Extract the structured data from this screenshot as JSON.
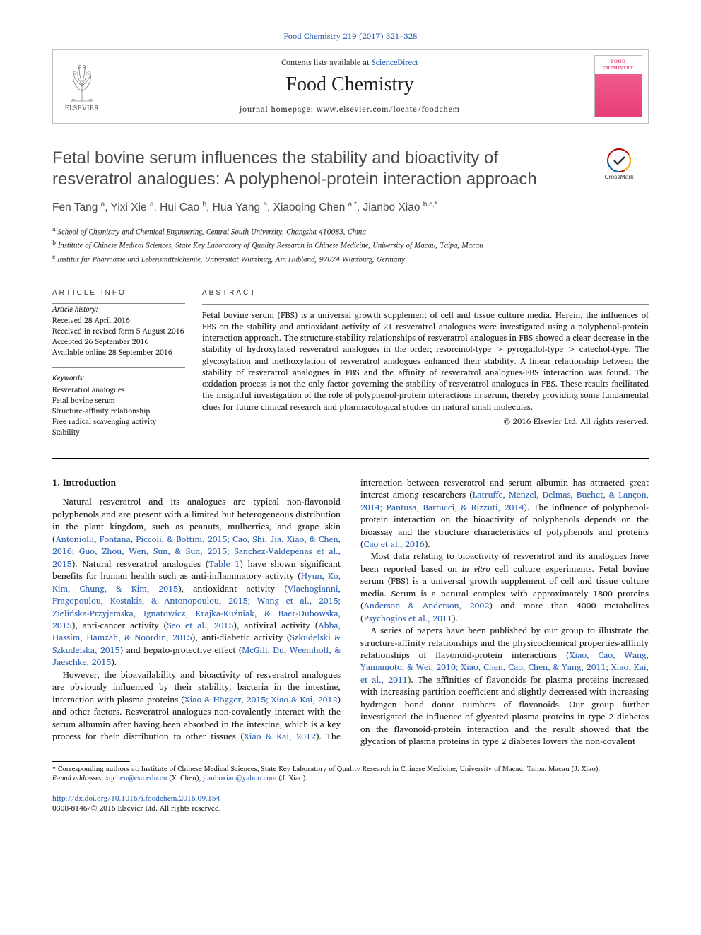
{
  "citation": "Food Chemistry 219 (2017) 321–328",
  "header": {
    "contents_prefix": "Contents lists available at ",
    "contents_link": "ScienceDirect",
    "journal": "Food Chemistry",
    "homepage_label": "journal homepage: ",
    "homepage_url": "www.elsevier.com/locate/foodchem",
    "publisher": "ELSEVIER",
    "cover_line1": "FOOD",
    "cover_line2": "CHEMISTRY"
  },
  "crossmark_label": "CrossMark",
  "title": "Fetal bovine serum influences the stability and bioactivity of resveratrol analogues: A polyphenol-protein interaction approach",
  "authors_html": "Fen Tang <sup>a</sup>, Yixi Xie <sup>a</sup>, Hui Cao <sup>b</sup>, Hua Yang <sup>a</sup>, Xiaoqing Chen <sup>a,*</sup>, Jianbo Xiao <sup>b,c,*</sup>",
  "affiliations": [
    "a School of Chemistry and Chemical Engineering, Central South University, Changsha 410083, China",
    "b Institute of Chinese Medical Sciences, State Key Laboratory of Quality Research in Chinese Medicine, University of Macau, Taipa, Macau",
    "c Institut für Pharmazie und Lebensmittelchemie, Universität Würzburg, Am Hubland, 97074 Würzburg, Germany"
  ],
  "info_heading": "ARTICLE INFO",
  "abstract_heading": "ABSTRACT",
  "history_label": "Article history:",
  "history": [
    "Received 28 April 2016",
    "Received in revised form 5 August 2016",
    "Accepted 26 September 2016",
    "Available online 28 September 2016"
  ],
  "keywords_label": "Keywords:",
  "keywords": [
    "Resveratrol analogues",
    "Fetal bovine serum",
    "Structure-affinity relationship",
    "Free radical scavenging activity",
    "Stability"
  ],
  "abstract": "Fetal bovine serum (FBS) is a universal growth supplement of cell and tissue culture media. Herein, the influences of FBS on the stability and antioxidant activity of 21 resveratrol analogues were investigated using a polyphenol-protein interaction approach. The structure-stability relationships of resveratrol analogues in FBS showed a clear decrease in the stability of hydroxylated resveratrol analogues in the order; resorcinol-type > pyrogallol-type > catechol-type. The glycosylation and methoxylation of resveratrol analogues enhanced their stability. A linear relationship between the stability of resveratrol analogues in FBS and the affinity of resveratrol analogues-FBS interaction was found. The oxidation process is not the only factor governing the stability of resveratrol analogues in FBS. These results facilitated the insightful investigation of the role of polyphenol-protein interactions in serum, thereby providing some fundamental clues for future clinical research and pharmacological studies on natural small molecules.",
  "copyright": "© 2016 Elsevier Ltd. All rights reserved.",
  "section1_head": "1. Introduction",
  "para1_a": "Natural resveratrol and its analogues are typical non-flavonoid polyphenols and are present with a limited but heterogeneous distribution in the plant kingdom, such as peanuts, mulberries, and grape skin (",
  "para1_cite1": "Antoniolli, Fontana, Piccoli, & Bottini, 2015; Cao, Shi, Jia, Xiao, & Chen, 2016; Guo, Zhou, Wen, Sun, & Sun, 2015; Sanchez-Valdepenas et al., 2015",
  "para1_b": "). Natural resveratrol analogues (",
  "para1_link_table": "Table 1",
  "para1_c": ") have shown significant benefits for human health such as anti-inflammatory activity (",
  "para1_cite2": "Hyun, Ko, Kim, Chung, & Kim, 2015",
  "para1_d": "), antioxidant activity (",
  "para1_cite3": "Vlachogianni, Fragopoulou, Kostakis, & Antonopoulou, 2015; Wang et al., 2015; Zielińska-Przyjemska, Ignatowicz, Krajka-Kuźniak, & Baer-Dubowska, 2015",
  "para1_e": "), anti-cancer activity (",
  "para1_cite4": "Seo et al., 2015",
  "para1_f": "), antiviral activity (",
  "para1_cite5": "Abba, Hassim, Hamzah, & Noordin, 2015",
  "para1_g": "), anti-diabetic activity (",
  "para1_cite6": "Szkudelski & Szkudelska, 2015",
  "para1_h": ") and hepato-protective effect (",
  "para1_cite7": "McGill, Du, Weemhoff, & Jaeschke, 2015",
  "para1_i": ").",
  "para2_a": "However, the bioavailability and bioactivity of resveratrol analogues are obviously influenced by their stability, bacteria in the intestine, interaction with plasma proteins (",
  "para2_cite1": "Xiao & Högger, 2015; Xiao & Kai, 2012",
  "para2_b": ") and other factors. Resveratrol analogues non-covalently interact with the serum albumin after having been absorbed in the intestine, which is a key process for their distribution to other tissues (",
  "para2_cite2": "Xiao & Kai, 2012",
  "para2_c": "). The interaction between resveratrol and serum albumin has attracted great interest among researchers (",
  "para2_cite3": "Latruffe, Menzel, Delmas, Buchet, & Lançon, 2014; Pantusa, Bartucci, & Rizzuti, 2014",
  "para2_d": "). The influence of polyphenol-protein interaction on the bioactivity of polyphenols depends on the bioassay and the structure characteristics of polyphenols and proteins (",
  "para2_cite4": "Cao et al., 2016",
  "para2_e": ").",
  "para3_a": "Most data relating to bioactivity of resveratrol and its analogues have been reported based on ",
  "para3_i": "in vitro",
  "para3_b": " cell culture experiments. Fetal bovine serum (FBS) is a universal growth supplement of cell and tissue culture media. Serum is a natural complex with approximately 1800 proteins (",
  "para3_cite1": "Anderson & Anderson, 2002",
  "para3_c": ") and more than 4000 metabolites (",
  "para3_cite2": "Psychogios et al., 2011",
  "para3_d": ").",
  "para4_a": "A series of papers have been published by our group to illustrate the structure-affinity relationships and the physicochemical properties-affinity relationships of flavonoid-protein interactions (",
  "para4_cite1": "Xiao, Cao, Wang, Yamamoto, & Wei, 2010; Xiao, Chen, Cao, Chen, & Yang, 2011; Xiao, Kai, et al., 2011",
  "para4_b": "). The affinities of flavonoids for plasma proteins increased with increasing partition coefficient and slightly decreased with increasing hydrogen bond donor numbers of flavonoids. Our group further investigated the influence of glycated plasma proteins in type 2 diabetes on the flavonoid-protein interaction and the result showed that the glycation of plasma proteins in type 2 diabetes lowers the non-covalent",
  "footnote_corr": "* Corresponding authors at: Institute of Chinese Medical Sciences, State Key Laboratory of Quality Research in Chinese Medicine, University of Macau, Taipa, Macau (J. Xiao).",
  "footnote_email_label": "E-mail addresses:",
  "footnote_email1": "xqchen@csu.edu.cn",
  "footnote_email1_who": " (X. Chen), ",
  "footnote_email2": "jianboxiao@yahoo.com",
  "footnote_email2_who": " (J. Xiao).",
  "doi_url": "http://dx.doi.org/10.1016/j.foodchem.2016.09.154",
  "issn_line": "0308-8146/© 2016 Elsevier Ltd. All rights reserved.",
  "colors": {
    "link": "#2a5db0",
    "text": "#1a1a1a",
    "heading_gray": "#4a4a4a",
    "rule": "#000000",
    "cover_pink": "#e83f78"
  }
}
